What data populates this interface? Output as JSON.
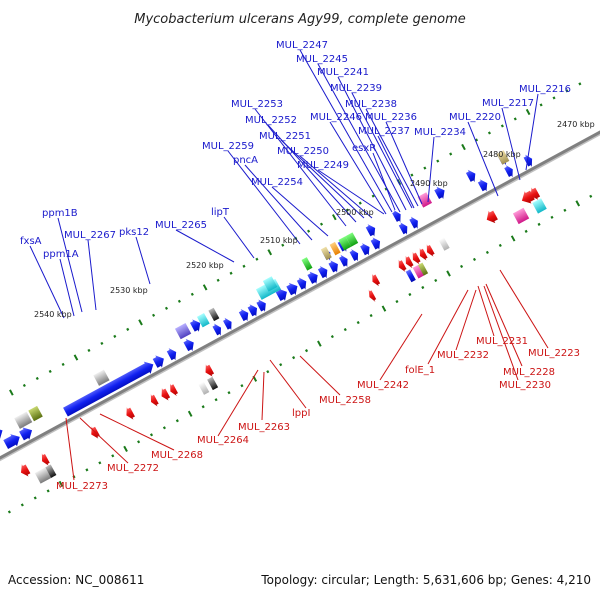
{
  "title": "Mycobacterium ulcerans Agy99, complete genome",
  "footer": {
    "accession": "Accession: NC_008611",
    "summary": "Topology: circular; Length: 5,631,606 bp; Genes: 4,210"
  },
  "colors": {
    "forward": "#0a18e0",
    "reverse": "#e01010",
    "backbone": "#808080",
    "tick": "#1a7a1a"
  },
  "kbp_labels": [
    {
      "text": "2470 kbp"
    },
    {
      "text": "2480 kbp"
    },
    {
      "text": "2490 kbp"
    },
    {
      "text": "2500 kbp"
    },
    {
      "text": "2510 kbp"
    },
    {
      "text": "2520 kbp"
    },
    {
      "text": "2530 kbp"
    },
    {
      "text": "2540 kbp"
    }
  ],
  "forward_labels": [
    {
      "text": "MUL_2247"
    },
    {
      "text": "MUL_2245"
    },
    {
      "text": "MUL_2241"
    },
    {
      "text": "MUL_2239"
    },
    {
      "text": "MUL_2238"
    },
    {
      "text": "MUL_2246"
    },
    {
      "text": "MUL_2236"
    },
    {
      "text": "MUL_2237"
    },
    {
      "text": "MUL_2234"
    },
    {
      "text": "MUL_2253"
    },
    {
      "text": "MUL_2252"
    },
    {
      "text": "MUL_2251"
    },
    {
      "text": "MUL_2259"
    },
    {
      "text": "MUL_2250"
    },
    {
      "text": "esxR"
    },
    {
      "text": "pncA"
    },
    {
      "text": "MUL_2249"
    },
    {
      "text": "MUL_2254"
    },
    {
      "text": "MUL_2220"
    },
    {
      "text": "MUL_2217"
    },
    {
      "text": "MUL_2216"
    },
    {
      "text": "lipT"
    },
    {
      "text": "MUL_2265"
    },
    {
      "text": "pks12"
    },
    {
      "text": "ppm1B"
    },
    {
      "text": "MUL_2267"
    },
    {
      "text": "fxsA"
    },
    {
      "text": "ppm1A"
    }
  ],
  "reverse_labels": [
    {
      "text": "MUL_2231"
    },
    {
      "text": "MUL_2223"
    },
    {
      "text": "folE_1"
    },
    {
      "text": "MUL_2232"
    },
    {
      "text": "MUL_2228"
    },
    {
      "text": "MUL_2230"
    },
    {
      "text": "MUL_2242"
    },
    {
      "text": "MUL_2258"
    },
    {
      "text": "lppI"
    },
    {
      "text": "MUL_2263"
    },
    {
      "text": "MUL_2264"
    },
    {
      "text": "MUL_2268"
    },
    {
      "text": "MUL_2272"
    },
    {
      "text": "MUL_2273"
    }
  ]
}
